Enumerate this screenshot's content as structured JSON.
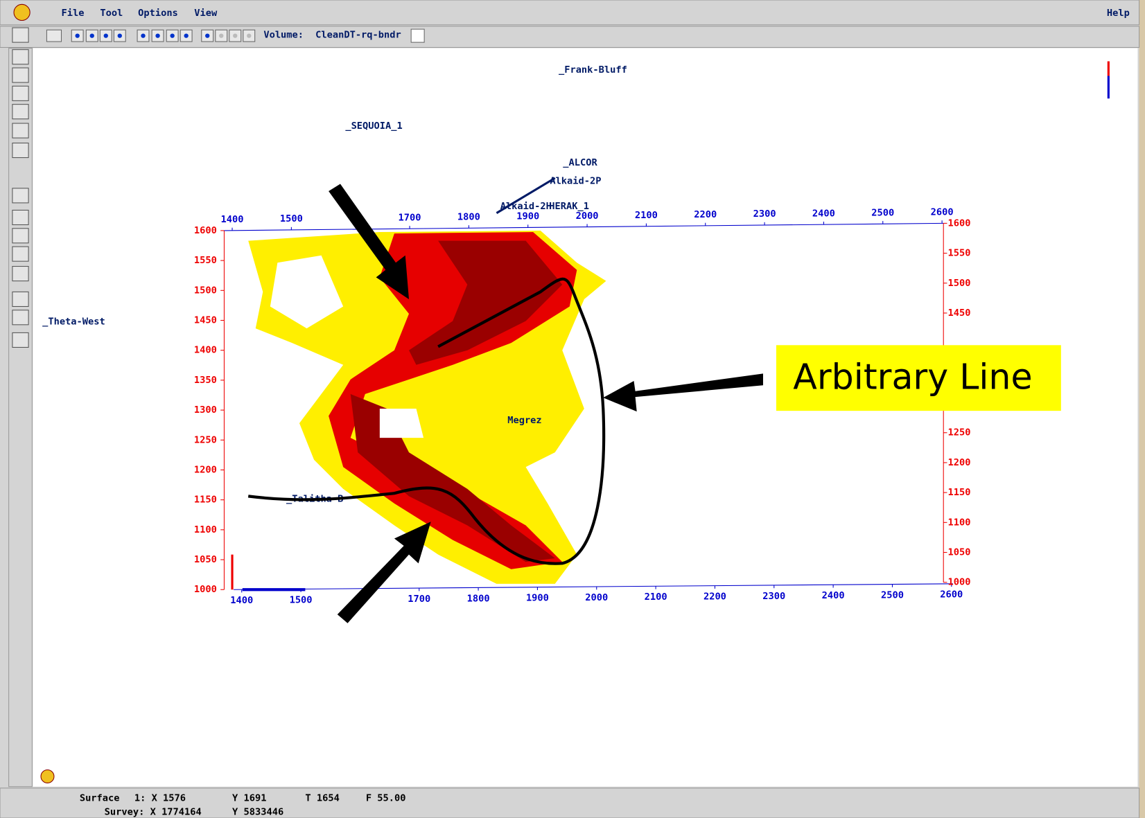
{
  "menu": {
    "items": [
      "File",
      "Tool",
      "Options",
      "View"
    ],
    "help": "Help"
  },
  "toolbar": {
    "volume_label": "Volume:",
    "volume_name": "CleanDT-rq-bndr"
  },
  "wells": [
    "_Frank-Bluff",
    "_SEQUOIA_1",
    "_ALCOR",
    "Alkaid-2P",
    "Alkaid-2H",
    "HERAK_1",
    "_Theta-West",
    "Megrez",
    "_Talitha-B"
  ],
  "axes": {
    "top": [
      1400,
      1500,
      1700,
      1800,
      1900,
      2000,
      2100,
      2200,
      2300,
      2400,
      2500,
      2600
    ],
    "bottom": [
      1400,
      1500,
      1700,
      1800,
      1900,
      2000,
      2100,
      2200,
      2300,
      2400,
      2500,
      2600
    ],
    "left": [
      1000,
      1050,
      1100,
      1150,
      1200,
      1250,
      1300,
      1350,
      1400,
      1450,
      1500,
      1550,
      1600
    ],
    "right": [
      1000,
      1050,
      1100,
      1150,
      1200,
      1250,
      1450,
      1500,
      1550,
      1600
    ]
  },
  "callout": "Arbitrary Line",
  "status": {
    "line1": [
      "Surface",
      "1: X 1576",
      "Y 1691",
      "T 1654",
      "F 55.00"
    ],
    "line2": [
      "Survey: X 1774164",
      "Y 5833446"
    ]
  }
}
